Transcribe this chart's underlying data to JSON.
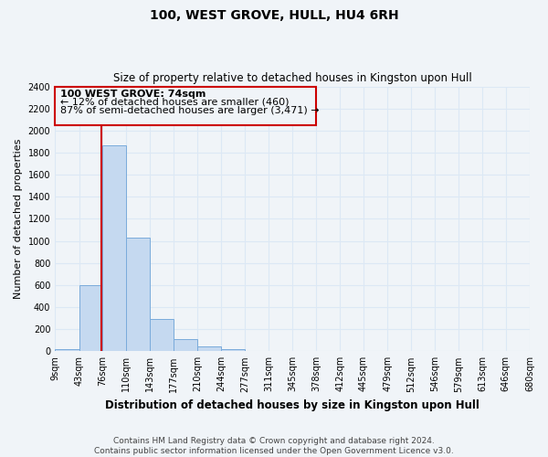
{
  "title": "100, WEST GROVE, HULL, HU4 6RH",
  "subtitle": "Size of property relative to detached houses in Kingston upon Hull",
  "xlabel": "Distribution of detached houses by size in Kingston upon Hull",
  "ylabel": "Number of detached properties",
  "bin_edges": [
    9,
    43,
    76,
    110,
    143,
    177,
    210,
    244,
    277,
    311,
    345,
    378,
    412,
    445,
    479,
    512,
    546,
    579,
    613,
    646,
    680
  ],
  "bar_heights": [
    20,
    600,
    1870,
    1030,
    290,
    110,
    45,
    20,
    0,
    0,
    0,
    0,
    0,
    0,
    0,
    0,
    0,
    0,
    0,
    0
  ],
  "bar_color": "#c5d9f0",
  "bar_edgecolor": "#7aabdb",
  "property_size": 74,
  "red_line_color": "#cc0000",
  "annotation_text_line1": "100 WEST GROVE: 74sqm",
  "annotation_text_line2": "← 12% of detached houses are smaller (460)",
  "annotation_text_line3": "87% of semi-detached houses are larger (3,471) →",
  "annotation_box_color": "#cc0000",
  "ylim": [
    0,
    2400
  ],
  "yticks": [
    0,
    200,
    400,
    600,
    800,
    1000,
    1200,
    1400,
    1600,
    1800,
    2000,
    2200,
    2400
  ],
  "footer_line1": "Contains HM Land Registry data © Crown copyright and database right 2024.",
  "footer_line2": "Contains public sector information licensed under the Open Government Licence v3.0.",
  "bg_color": "#f0f4f8",
  "grid_color": "#dce8f5",
  "title_fontsize": 10,
  "subtitle_fontsize": 8.5,
  "tick_label_fontsize": 7,
  "ylabel_fontsize": 8,
  "xlabel_fontsize": 8.5,
  "footer_fontsize": 6.5
}
